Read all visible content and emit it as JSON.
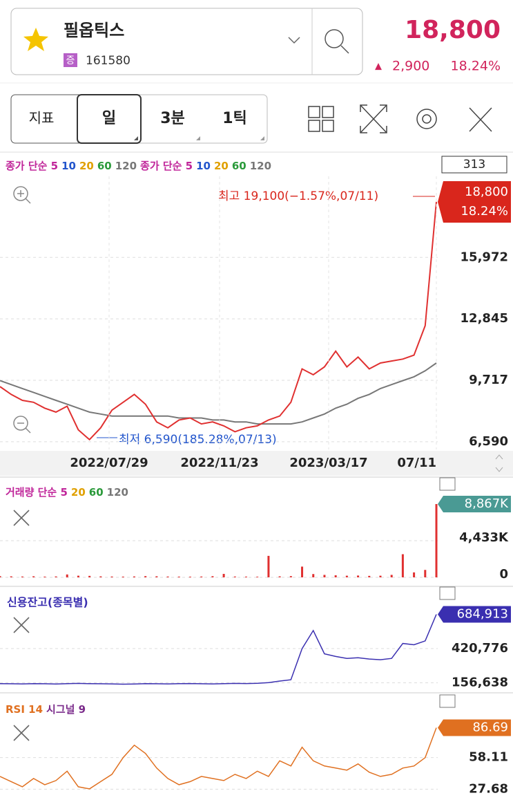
{
  "header": {
    "name": "필옵틱스",
    "badge": "증",
    "code": "161580",
    "price": "18,800",
    "change": "2,900",
    "change_pct": "18.24%"
  },
  "toolbar": {
    "indicator": "지표",
    "tabs": [
      "일",
      "3분",
      "1틱"
    ]
  },
  "price_panel": {
    "legend": [
      {
        "text": "종가 단순 5",
        "color": "#c0269a"
      },
      {
        "text": "10",
        "color": "#2255cc"
      },
      {
        "text": "20",
        "color": "#e0a000"
      },
      {
        "text": "60",
        "color": "#2a9a3a"
      },
      {
        "text": "120",
        "color": "#777777"
      },
      {
        "text": "종가 단순 5",
        "color": "#c0269a"
      },
      {
        "text": "10",
        "color": "#2255cc"
      },
      {
        "text": "20",
        "color": "#e0a000"
      },
      {
        "text": "60",
        "color": "#2a9a3a"
      },
      {
        "text": "120",
        "color": "#777777"
      }
    ],
    "count": "313",
    "current": "18,800",
    "current_pct": "18.24%",
    "high_label": "최고 19,100(−1.57%,07/11)",
    "low_label": "최저 6,590(185.28%,07/13)",
    "ylim": [
      6200,
      20100
    ],
    "yticks": [
      {
        "value": 15972,
        "label": "15,972"
      },
      {
        "value": 12845,
        "label": "12,845"
      },
      {
        "value": 9717,
        "label": "9,717"
      },
      {
        "value": 6590,
        "label": "6,590"
      }
    ],
    "xlim": [
      0,
      312
    ],
    "xticks": [
      {
        "value": 78,
        "label": "2022/07/29"
      },
      {
        "value": 157,
        "label": "2022/11/23"
      },
      {
        "value": 235,
        "label": "2023/03/17"
      },
      {
        "value": 312,
        "label": "07/11"
      }
    ],
    "x": [
      0,
      8,
      16,
      24,
      32,
      40,
      48,
      56,
      64,
      72,
      80,
      88,
      96,
      104,
      112,
      120,
      128,
      136,
      144,
      152,
      160,
      168,
      176,
      184,
      192,
      200,
      208,
      216,
      224,
      232,
      240,
      248,
      256,
      264,
      272,
      280,
      288,
      296,
      304,
      312
    ],
    "close": {
      "color": "#e03030",
      "values": [
        9400,
        9000,
        8700,
        8600,
        8300,
        8100,
        8400,
        7200,
        6700,
        7300,
        8200,
        8600,
        9000,
        8500,
        7600,
        7300,
        7700,
        7800,
        7500,
        7600,
        7400,
        7100,
        7300,
        7400,
        7700,
        7900,
        8600,
        10300,
        10000,
        10400,
        11200,
        10400,
        10900,
        10300,
        10600,
        10700,
        10800,
        11000,
        12500,
        18800
      ]
    },
    "ma120": {
      "color": "#777777",
      "values": [
        9700,
        9500,
        9300,
        9100,
        8900,
        8700,
        8500,
        8300,
        8100,
        8000,
        7900,
        7900,
        7900,
        7900,
        7900,
        7900,
        7800,
        7800,
        7800,
        7700,
        7700,
        7600,
        7600,
        7500,
        7500,
        7500,
        7500,
        7600,
        7800,
        8000,
        8300,
        8500,
        8800,
        9000,
        9300,
        9500,
        9700,
        9900,
        10200,
        10600
      ]
    }
  },
  "volume_panel": {
    "legend": [
      {
        "text": "거래량 단순 5",
        "color": "#c0269a"
      },
      {
        "text": "20",
        "color": "#e0a000"
      },
      {
        "text": "60",
        "color": "#2a9a3a"
      },
      {
        "text": "120",
        "color": "#777777"
      }
    ],
    "ylim": [
      0,
      9200
    ],
    "yticks": [
      {
        "value": 4433,
        "label": "4,433K"
      },
      0
    ],
    "last": {
      "value": 8867,
      "label": "8,867K"
    },
    "color": "#e03030",
    "values": [
      150,
      120,
      100,
      130,
      90,
      110,
      350,
      200,
      180,
      120,
      100,
      90,
      110,
      150,
      130,
      100,
      90,
      80,
      100,
      140,
      420,
      100,
      90,
      80,
      2600,
      120,
      150,
      1300,
      400,
      300,
      250,
      200,
      220,
      180,
      200,
      300,
      2800,
      600,
      900,
      8867
    ]
  },
  "credit_panel": {
    "title": "신용잔고(종목별)",
    "color": "#3a2fb0",
    "ylim": [
      90000,
      730000
    ],
    "yticks": [
      {
        "value": 420776,
        "label": "420,776"
      },
      {
        "value": 156638,
        "label": "156,638"
      }
    ],
    "last": {
      "value": 684913,
      "label": "684,913"
    },
    "values": [
      150000,
      149000,
      148000,
      150000,
      149000,
      147000,
      150000,
      152000,
      150000,
      149000,
      148000,
      146000,
      147000,
      150000,
      149000,
      148000,
      150000,
      151000,
      149000,
      148000,
      150000,
      152000,
      151000,
      153000,
      158000,
      170000,
      180000,
      420000,
      560000,
      380000,
      360000,
      345000,
      350000,
      340000,
      335000,
      345000,
      460000,
      450000,
      480000,
      684913
    ]
  },
  "rsi_panel": {
    "legend": [
      {
        "text": "RSI 14",
        "color": "#e07020"
      },
      {
        "text": "시그널 9",
        "color": "#7a2a8a"
      }
    ],
    "color": "#e07020",
    "ylim": [
      20,
      95
    ],
    "yticks": [
      58.11,
      27.68
    ],
    "last": 86.69,
    "values": [
      40,
      35,
      30,
      38,
      32,
      36,
      45,
      30,
      28,
      35,
      42,
      58,
      70,
      62,
      48,
      38,
      32,
      35,
      40,
      38,
      36,
      42,
      38,
      45,
      40,
      55,
      50,
      68,
      55,
      50,
      48,
      46,
      52,
      44,
      40,
      42,
      48,
      50,
      58,
      86.69
    ]
  }
}
